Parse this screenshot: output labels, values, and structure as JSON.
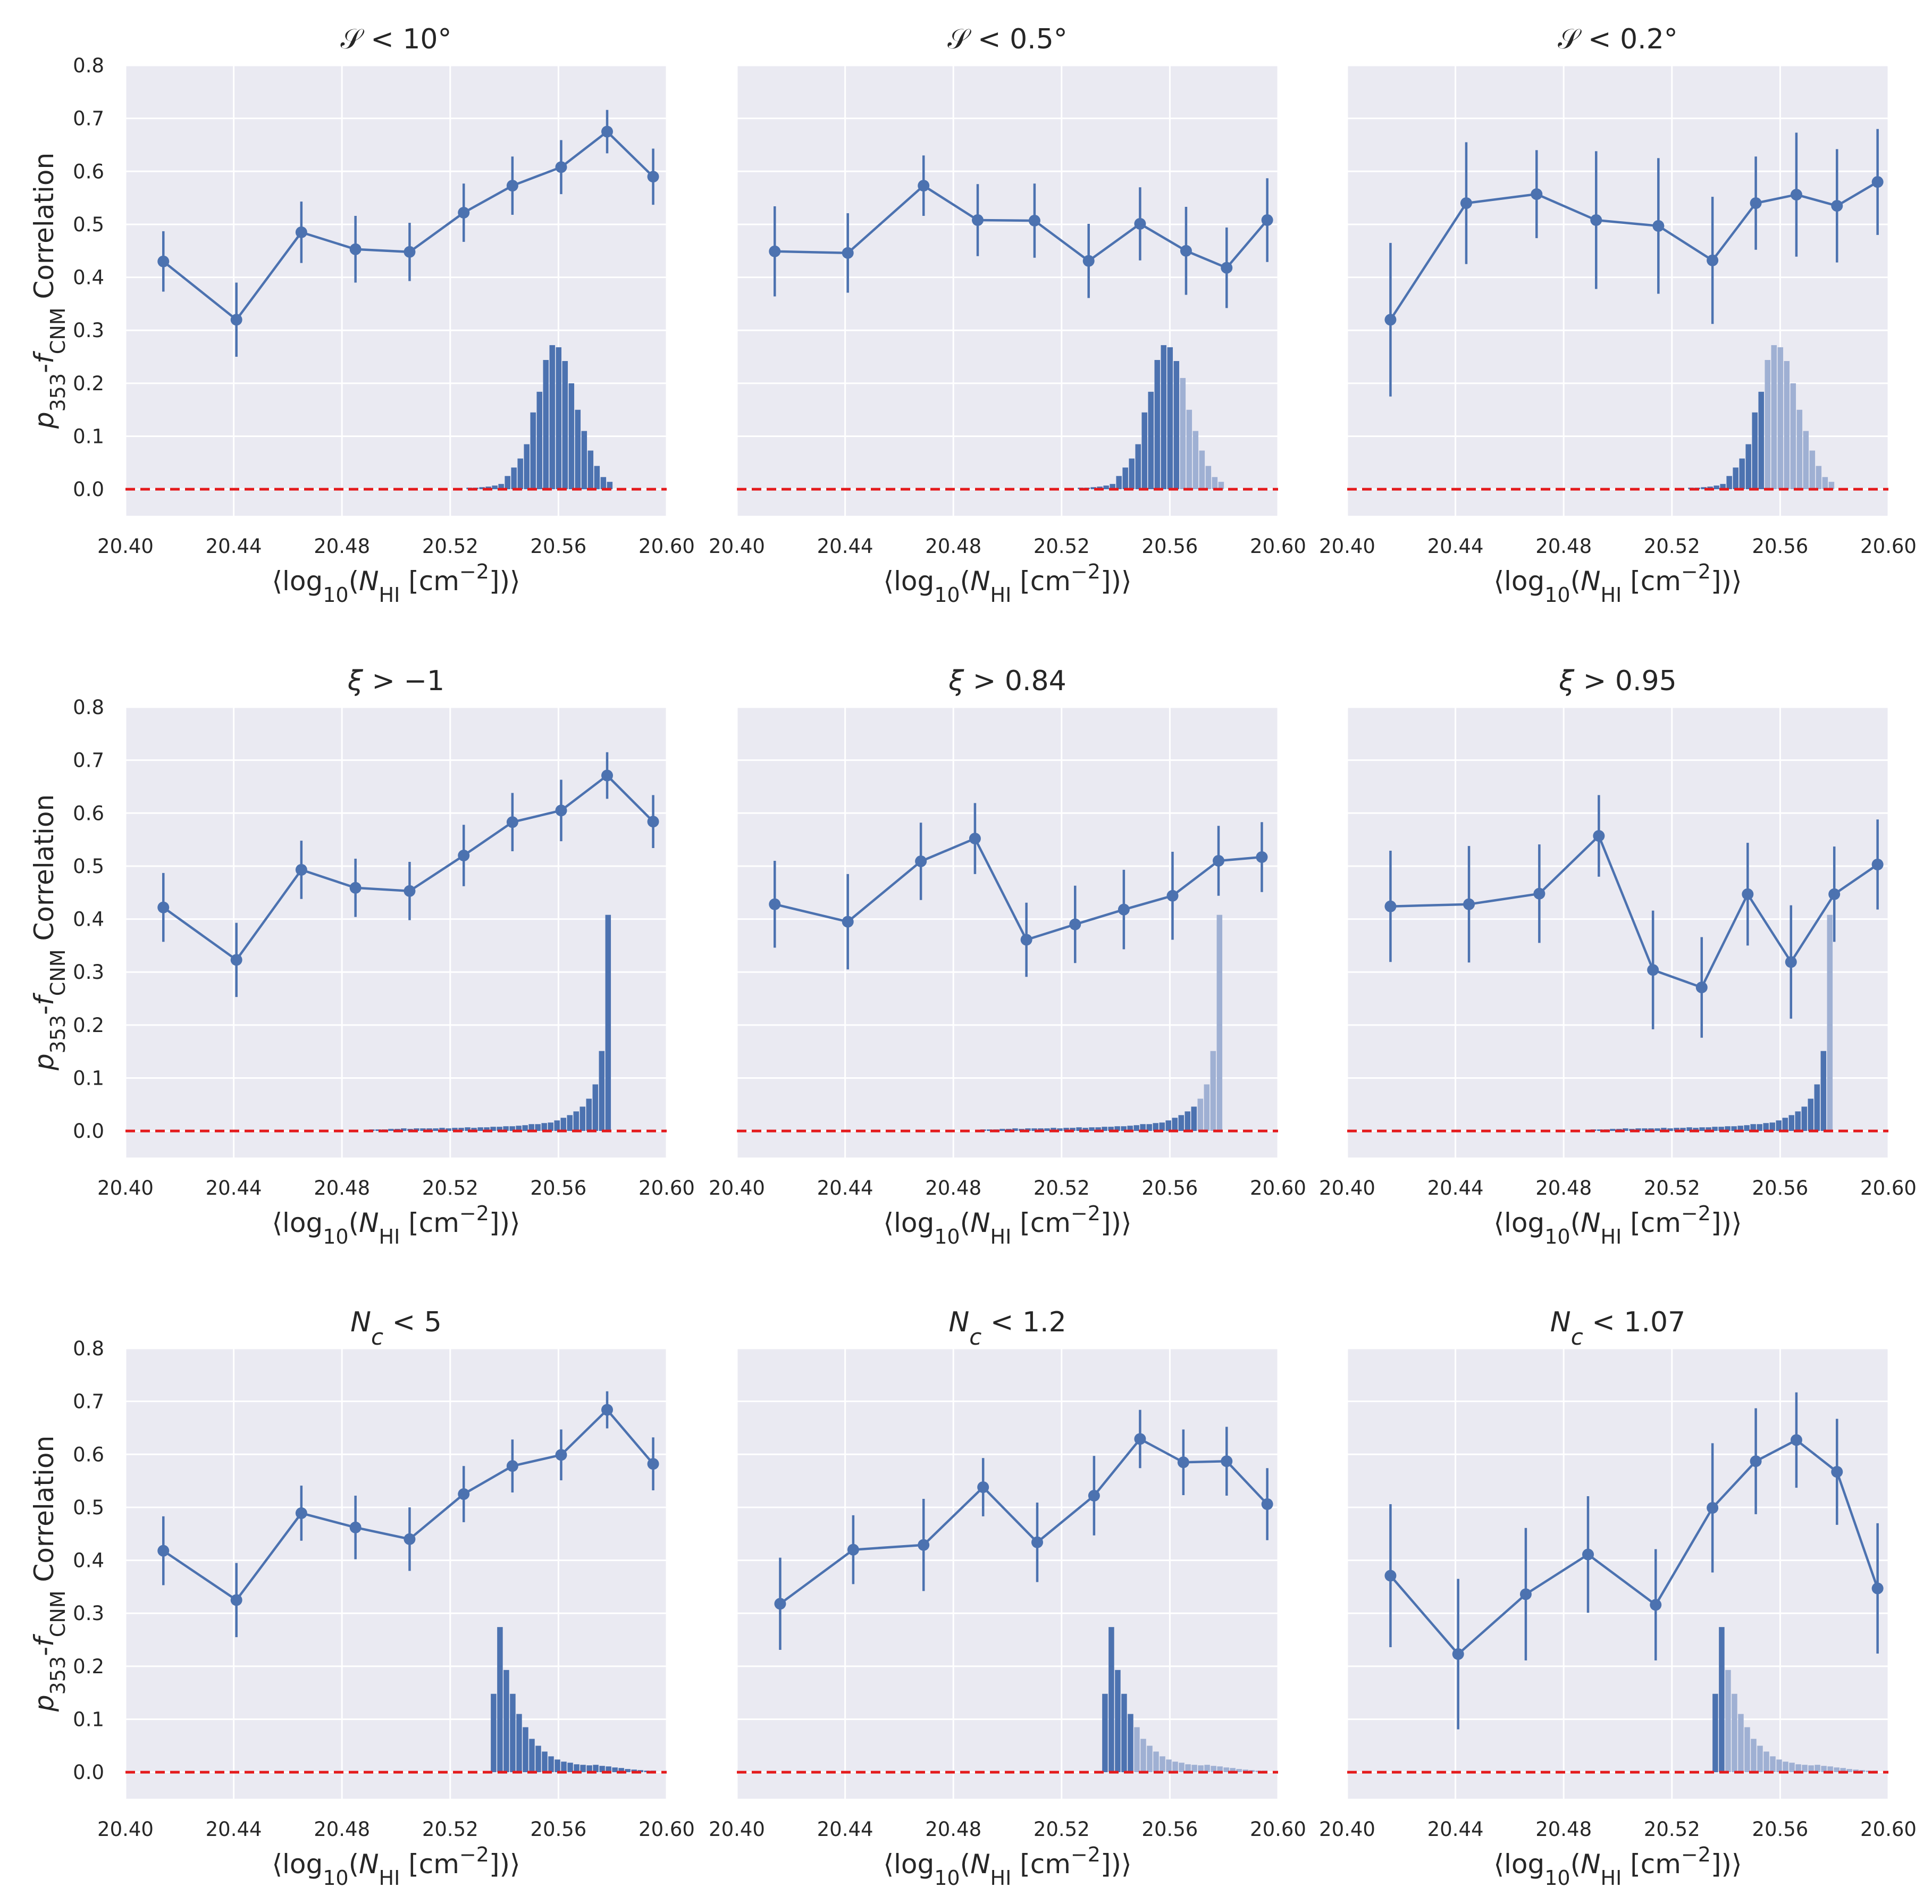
{
  "figure": {
    "ylabel": "p353-fCNM Correlation",
    "xlabel": "⟨log10(NHI [cm−2])⟩",
    "line_color": "#4c72b0",
    "bar_color": "#4c72b0",
    "bar_faded_color": "#9fb0d3",
    "zero_line_color": "#e41a1c",
    "panel_bg": "#eaeaf2"
  },
  "chart_data": [
    {
      "type": "line",
      "title": "S < 10°",
      "xlim": [
        20.4,
        20.6
      ],
      "ylim": [
        -0.05,
        0.8
      ],
      "xticks": [
        "20.40",
        "20.44",
        "20.48",
        "20.52",
        "20.56",
        "20.60"
      ],
      "yticks": [
        "0.0",
        "0.1",
        "0.2",
        "0.3",
        "0.4",
        "0.5",
        "0.6",
        "0.7",
        "0.8"
      ],
      "x": [
        20.414,
        20.441,
        20.465,
        20.485,
        20.505,
        20.525,
        20.543,
        20.561,
        20.578,
        20.595
      ],
      "y": [
        0.43,
        0.32,
        0.485,
        0.453,
        0.448,
        0.522,
        0.573,
        0.608,
        0.675,
        0.59
      ],
      "err": [
        0.057,
        0.07,
        0.058,
        0.063,
        0.055,
        0.055,
        0.055,
        0.051,
        0.041,
        0.053
      ],
      "hist": {
        "start": 20.526,
        "width": 0.00236,
        "values": [
          0.003,
          0.003,
          0.004,
          0.005,
          0.007,
          0.01,
          0.025,
          0.041,
          0.058,
          0.085,
          0.145,
          0.184,
          0.244,
          0.272,
          0.268,
          0.242,
          0.2,
          0.15,
          0.11,
          0.073,
          0.044,
          0.023,
          0.014
        ],
        "faded_from": 999
      }
    },
    {
      "type": "line",
      "title": "S < 0.5°",
      "xlim": [
        20.4,
        20.6
      ],
      "ylim": [
        -0.05,
        0.8
      ],
      "xticks": [
        "20.40",
        "20.44",
        "20.48",
        "20.52",
        "20.56",
        "20.60"
      ],
      "yticks": [],
      "x": [
        20.414,
        20.441,
        20.469,
        20.489,
        20.51,
        20.53,
        20.549,
        20.566,
        20.581,
        20.596
      ],
      "y": [
        0.449,
        0.446,
        0.573,
        0.508,
        0.507,
        0.431,
        0.501,
        0.45,
        0.418,
        0.508
      ],
      "err": [
        0.085,
        0.075,
        0.057,
        0.068,
        0.07,
        0.07,
        0.069,
        0.083,
        0.076,
        0.079
      ],
      "hist": {
        "start": 20.526,
        "width": 0.00236,
        "values": [
          0.003,
          0.003,
          0.004,
          0.005,
          0.007,
          0.01,
          0.025,
          0.041,
          0.058,
          0.085,
          0.145,
          0.184,
          0.244,
          0.272,
          0.268,
          0.242,
          0.21,
          0.15,
          0.11,
          0.073,
          0.044,
          0.023,
          0.014
        ],
        "faded_from": 16
      }
    },
    {
      "type": "line",
      "title": "S < 0.2°",
      "xlim": [
        20.4,
        20.6
      ],
      "ylim": [
        -0.05,
        0.8
      ],
      "xticks": [
        "20.40",
        "20.44",
        "20.48",
        "20.52",
        "20.56",
        "20.60"
      ],
      "yticks": [],
      "x": [
        20.416,
        20.444,
        20.47,
        20.492,
        20.515,
        20.535,
        20.551,
        20.566,
        20.581,
        20.596
      ],
      "y": [
        0.32,
        0.54,
        0.557,
        0.508,
        0.497,
        0.432,
        0.54,
        0.556,
        0.535,
        0.58
      ],
      "err": [
        0.145,
        0.115,
        0.083,
        0.13,
        0.128,
        0.12,
        0.088,
        0.117,
        0.107,
        0.1
      ],
      "hist": {
        "start": 20.526,
        "width": 0.00236,
        "values": [
          0.003,
          0.003,
          0.004,
          0.005,
          0.007,
          0.01,
          0.025,
          0.041,
          0.058,
          0.085,
          0.145,
          0.184,
          0.244,
          0.272,
          0.268,
          0.242,
          0.2,
          0.15,
          0.11,
          0.073,
          0.044,
          0.023,
          0.014
        ],
        "faded_from": 12
      }
    },
    {
      "type": "line",
      "title": "ξ > −1",
      "xlim": [
        20.4,
        20.6
      ],
      "ylim": [
        -0.05,
        0.8
      ],
      "xticks": [
        "20.40",
        "20.44",
        "20.48",
        "20.52",
        "20.56",
        "20.60"
      ],
      "yticks": [
        "0.0",
        "0.1",
        "0.2",
        "0.3",
        "0.4",
        "0.5",
        "0.6",
        "0.7",
        "0.8"
      ],
      "x": [
        20.414,
        20.441,
        20.465,
        20.485,
        20.505,
        20.525,
        20.543,
        20.561,
        20.578,
        20.595
      ],
      "y": [
        0.422,
        0.323,
        0.493,
        0.459,
        0.453,
        0.52,
        0.583,
        0.605,
        0.671,
        0.584
      ],
      "err": [
        0.065,
        0.07,
        0.055,
        0.055,
        0.055,
        0.058,
        0.055,
        0.058,
        0.044,
        0.05
      ],
      "hist": {
        "start": 20.49,
        "width": 0.00236,
        "values": [
          0.003,
          0.003,
          0.003,
          0.004,
          0.004,
          0.005,
          0.004,
          0.005,
          0.005,
          0.005,
          0.005,
          0.006,
          0.005,
          0.006,
          0.006,
          0.007,
          0.006,
          0.007,
          0.007,
          0.008,
          0.008,
          0.009,
          0.009,
          0.01,
          0.011,
          0.013,
          0.013,
          0.015,
          0.016,
          0.02,
          0.025,
          0.03,
          0.037,
          0.046,
          0.061,
          0.088,
          0.151,
          0.408
        ],
        "faded_from": 999
      }
    },
    {
      "type": "line",
      "title": "ξ > 0.84",
      "xlim": [
        20.4,
        20.6
      ],
      "ylim": [
        -0.05,
        0.8
      ],
      "xticks": [
        "20.40",
        "20.44",
        "20.48",
        "20.52",
        "20.56",
        "20.60"
      ],
      "yticks": [],
      "x": [
        20.414,
        20.441,
        20.468,
        20.488,
        20.507,
        20.525,
        20.543,
        20.561,
        20.578,
        20.594
      ],
      "y": [
        0.428,
        0.395,
        0.509,
        0.552,
        0.361,
        0.39,
        0.418,
        0.444,
        0.51,
        0.517
      ],
      "err": [
        0.082,
        0.09,
        0.073,
        0.067,
        0.07,
        0.073,
        0.075,
        0.083,
        0.066,
        0.066
      ],
      "hist": {
        "start": 20.49,
        "width": 0.00236,
        "values": [
          0.003,
          0.003,
          0.003,
          0.004,
          0.004,
          0.005,
          0.004,
          0.005,
          0.005,
          0.005,
          0.005,
          0.006,
          0.005,
          0.006,
          0.006,
          0.007,
          0.006,
          0.007,
          0.007,
          0.008,
          0.008,
          0.009,
          0.009,
          0.01,
          0.011,
          0.013,
          0.013,
          0.015,
          0.016,
          0.02,
          0.025,
          0.03,
          0.037,
          0.046,
          0.061,
          0.088,
          0.151,
          0.408
        ],
        "faded_from": 34
      }
    },
    {
      "type": "line",
      "title": "ξ > 0.95",
      "xlim": [
        20.4,
        20.6
      ],
      "ylim": [
        -0.05,
        0.8
      ],
      "xticks": [
        "20.40",
        "20.44",
        "20.48",
        "20.52",
        "20.56",
        "20.60"
      ],
      "yticks": [],
      "x": [
        20.416,
        20.445,
        20.471,
        20.493,
        20.513,
        20.531,
        20.548,
        20.564,
        20.58,
        20.596
      ],
      "y": [
        0.424,
        0.428,
        0.448,
        0.557,
        0.304,
        0.271,
        0.447,
        0.319,
        0.447,
        0.503
      ],
      "err": [
        0.105,
        0.11,
        0.093,
        0.077,
        0.112,
        0.095,
        0.097,
        0.107,
        0.09,
        0.085
      ],
      "hist": {
        "start": 20.49,
        "width": 0.00236,
        "values": [
          0.003,
          0.003,
          0.003,
          0.004,
          0.004,
          0.005,
          0.004,
          0.005,
          0.005,
          0.005,
          0.005,
          0.006,
          0.005,
          0.006,
          0.006,
          0.007,
          0.006,
          0.007,
          0.007,
          0.008,
          0.008,
          0.009,
          0.009,
          0.01,
          0.011,
          0.013,
          0.013,
          0.015,
          0.016,
          0.02,
          0.025,
          0.03,
          0.037,
          0.046,
          0.061,
          0.088,
          0.151,
          0.408
        ],
        "faded_from": 37
      }
    },
    {
      "type": "line",
      "title": "Nc < 5",
      "xlim": [
        20.4,
        20.6
      ],
      "ylim": [
        -0.05,
        0.8
      ],
      "xticks": [
        "20.40",
        "20.44",
        "20.48",
        "20.52",
        "20.56",
        "20.60"
      ],
      "yticks": [
        "0.0",
        "0.1",
        "0.2",
        "0.3",
        "0.4",
        "0.5",
        "0.6",
        "0.7",
        "0.8"
      ],
      "x": [
        20.414,
        20.441,
        20.465,
        20.485,
        20.505,
        20.525,
        20.543,
        20.561,
        20.578,
        20.595
      ],
      "y": [
        0.418,
        0.325,
        0.489,
        0.462,
        0.44,
        0.525,
        0.578,
        0.599,
        0.684,
        0.582
      ],
      "err": [
        0.065,
        0.07,
        0.052,
        0.06,
        0.06,
        0.053,
        0.05,
        0.048,
        0.035,
        0.05
      ],
      "hist": {
        "start": 20.535,
        "width": 0.00236,
        "values": [
          0.148,
          0.274,
          0.193,
          0.148,
          0.11,
          0.085,
          0.063,
          0.05,
          0.039,
          0.03,
          0.024,
          0.02,
          0.018,
          0.015,
          0.014,
          0.013,
          0.014,
          0.012,
          0.011,
          0.009,
          0.008,
          0.006,
          0.005,
          0.004,
          0.003,
          0.003
        ],
        "faded_from": 999
      }
    },
    {
      "type": "line",
      "title": "Nc < 1.2",
      "xlim": [
        20.4,
        20.6
      ],
      "ylim": [
        -0.05,
        0.8
      ],
      "xticks": [
        "20.40",
        "20.44",
        "20.48",
        "20.52",
        "20.56",
        "20.60"
      ],
      "yticks": [],
      "x": [
        20.416,
        20.443,
        20.469,
        20.491,
        20.511,
        20.532,
        20.549,
        20.565,
        20.581,
        20.596
      ],
      "y": [
        0.318,
        0.42,
        0.429,
        0.538,
        0.434,
        0.522,
        0.629,
        0.585,
        0.587,
        0.506
      ],
      "err": [
        0.087,
        0.065,
        0.087,
        0.055,
        0.075,
        0.075,
        0.055,
        0.062,
        0.065,
        0.068
      ],
      "hist": {
        "start": 20.535,
        "width": 0.00236,
        "values": [
          0.148,
          0.274,
          0.193,
          0.148,
          0.11,
          0.085,
          0.063,
          0.05,
          0.039,
          0.03,
          0.024,
          0.02,
          0.018,
          0.015,
          0.014,
          0.013,
          0.014,
          0.012,
          0.011,
          0.009,
          0.008,
          0.006,
          0.005,
          0.004,
          0.003,
          0.003
        ],
        "faded_from": 5
      }
    },
    {
      "type": "line",
      "title": "Nc < 1.07",
      "xlim": [
        20.4,
        20.6
      ],
      "ylim": [
        -0.05,
        0.8
      ],
      "xticks": [
        "20.40",
        "20.44",
        "20.48",
        "20.52",
        "20.56",
        "20.60"
      ],
      "yticks": [],
      "x": [
        20.416,
        20.441,
        20.466,
        20.489,
        20.514,
        20.535,
        20.551,
        20.566,
        20.581,
        20.596
      ],
      "y": [
        0.371,
        0.223,
        0.336,
        0.411,
        0.316,
        0.499,
        0.587,
        0.627,
        0.567,
        0.347
      ],
      "err": [
        0.135,
        0.142,
        0.125,
        0.11,
        0.105,
        0.122,
        0.1,
        0.09,
        0.1,
        0.123
      ],
      "hist": {
        "start": 20.535,
        "width": 0.00236,
        "values": [
          0.148,
          0.274,
          0.193,
          0.148,
          0.11,
          0.085,
          0.063,
          0.05,
          0.039,
          0.03,
          0.024,
          0.02,
          0.018,
          0.015,
          0.014,
          0.013,
          0.014,
          0.012,
          0.011,
          0.009,
          0.008,
          0.006,
          0.005,
          0.004,
          0.003,
          0.003
        ],
        "faded_from": 2
      }
    }
  ]
}
